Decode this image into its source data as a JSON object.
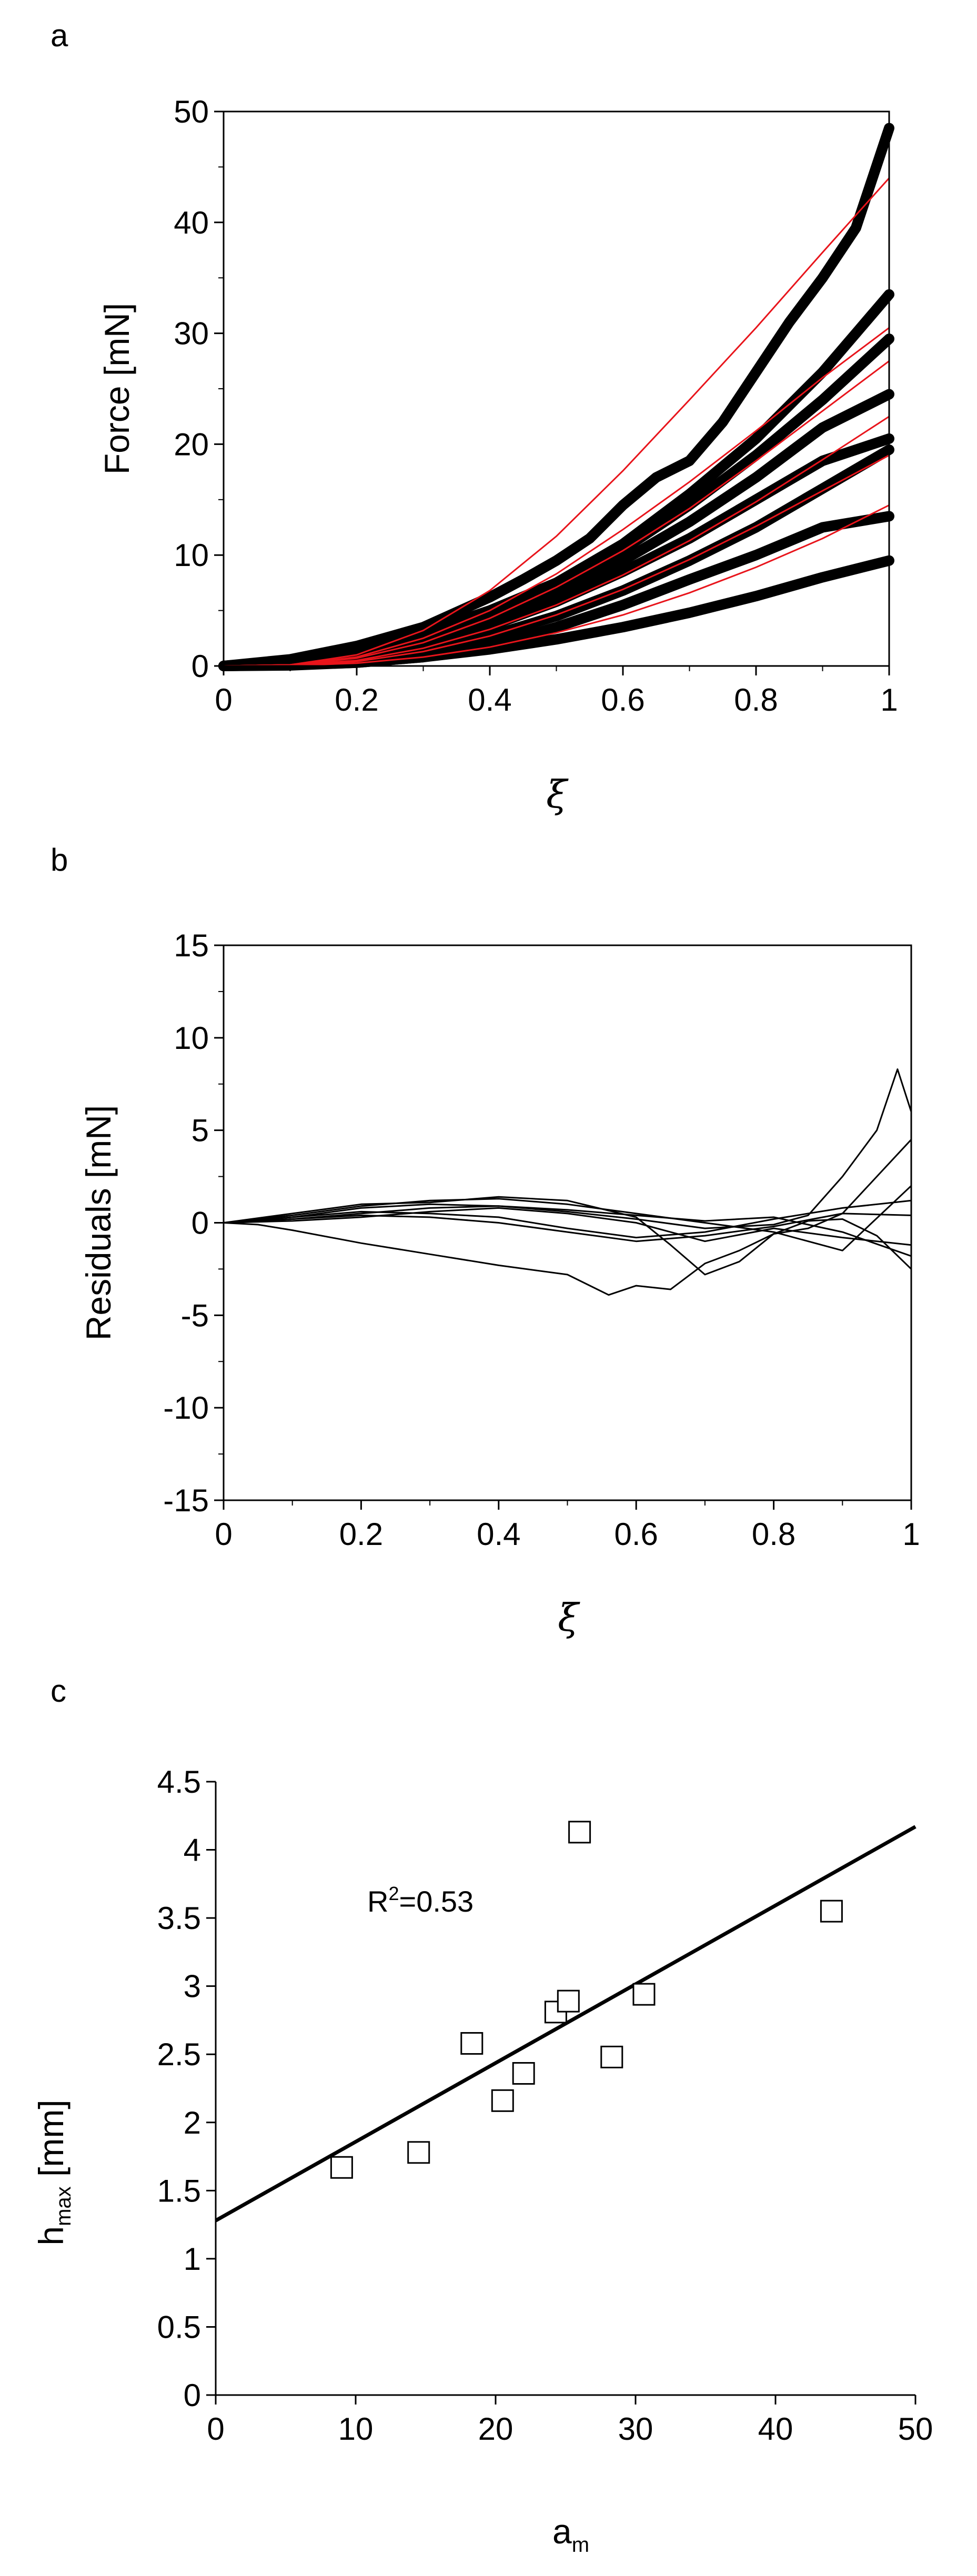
{
  "panels": {
    "a": {
      "letter": "a"
    },
    "b": {
      "letter": "b"
    },
    "c": {
      "letter": "c"
    }
  },
  "chart_data": [
    {
      "type": "line",
      "panel": "a",
      "xlabel": "ξ",
      "ylabel": "Force [mN]",
      "xlim": [
        0,
        1
      ],
      "ylim": [
        0,
        50
      ],
      "xticks": [
        "0",
        "0.2",
        "0.4",
        "0.6",
        "0.8",
        "1"
      ],
      "yticks": [
        "0",
        "10",
        "20",
        "30",
        "40",
        "50"
      ],
      "grid": false,
      "series_color": "#000000",
      "fit_color": "#e8141b",
      "series": [
        {
          "x": [
            0,
            0.1,
            0.2,
            0.3,
            0.4,
            0.45,
            0.5,
            0.55,
            0.6,
            0.65,
            0.7,
            0.75,
            0.8,
            0.85,
            0.9,
            0.95,
            1.0
          ],
          "values": [
            0,
            0.6,
            1.8,
            3.5,
            6.2,
            7.8,
            9.5,
            11.5,
            14.5,
            17.0,
            18.5,
            22.0,
            26.5,
            31.0,
            35.0,
            39.5,
            48.5
          ]
        },
        {
          "x": [
            0,
            0.1,
            0.2,
            0.3,
            0.4,
            0.5,
            0.6,
            0.7,
            0.8,
            0.9,
            0.95,
            1.0
          ],
          "values": [
            0,
            0.5,
            1.7,
            3.0,
            5.0,
            7.5,
            11.0,
            15.5,
            20.5,
            26.5,
            30.0,
            33.5
          ]
        },
        {
          "x": [
            0,
            0.1,
            0.2,
            0.3,
            0.4,
            0.5,
            0.6,
            0.7,
            0.8,
            0.9,
            1.0
          ],
          "values": [
            0,
            0.4,
            1.3,
            2.6,
            4.5,
            7.2,
            10.5,
            14.5,
            19.0,
            24.0,
            29.5
          ]
        },
        {
          "x": [
            0,
            0.1,
            0.2,
            0.3,
            0.4,
            0.5,
            0.6,
            0.7,
            0.8,
            0.9,
            1.0
          ],
          "values": [
            0,
            0.3,
            1.0,
            2.2,
            4.0,
            6.4,
            9.5,
            13.0,
            17.0,
            21.5,
            24.5
          ]
        },
        {
          "x": [
            0,
            0.1,
            0.2,
            0.3,
            0.4,
            0.5,
            0.6,
            0.7,
            0.8,
            0.9,
            1.0
          ],
          "values": [
            0,
            0.3,
            0.9,
            2.0,
            3.6,
            5.8,
            8.5,
            11.5,
            15.0,
            18.5,
            20.5
          ]
        },
        {
          "x": [
            0,
            0.1,
            0.2,
            0.3,
            0.4,
            0.5,
            0.6,
            0.7,
            0.8,
            0.9,
            1.0
          ],
          "values": [
            0,
            0.2,
            0.7,
            1.5,
            2.7,
            4.5,
            6.8,
            9.5,
            12.5,
            16.0,
            19.5
          ]
        },
        {
          "x": [
            0,
            0.1,
            0.2,
            0.3,
            0.4,
            0.5,
            0.6,
            0.7,
            0.8,
            0.9,
            1.0
          ],
          "values": [
            0,
            0.1,
            0.3,
            0.8,
            1.8,
            3.5,
            5.5,
            7.8,
            10.0,
            12.5,
            13.5
          ]
        },
        {
          "x": [
            0,
            0.1,
            0.2,
            0.3,
            0.4,
            0.5,
            0.6,
            0.7,
            0.8,
            0.9,
            1.0
          ],
          "values": [
            0,
            0.05,
            0.3,
            0.8,
            1.5,
            2.4,
            3.5,
            4.8,
            6.3,
            8.0,
            9.5
          ]
        }
      ],
      "fits": [
        {
          "x": [
            0,
            0.1,
            0.2,
            0.3,
            0.4,
            0.5,
            0.6,
            0.7,
            0.8,
            0.9,
            1.0
          ],
          "values": [
            0,
            0.1,
            1.0,
            3.2,
            6.8,
            11.7,
            17.6,
            24.0,
            30.5,
            37.3,
            44.0
          ]
        },
        {
          "x": [
            0,
            0.1,
            0.2,
            0.3,
            0.4,
            0.5,
            0.6,
            0.7,
            0.8,
            0.9,
            1.0
          ],
          "values": [
            0,
            0.1,
            0.8,
            2.5,
            5.0,
            8.3,
            12.3,
            16.6,
            21.2,
            26.0,
            30.5
          ]
        },
        {
          "x": [
            0,
            0.1,
            0.2,
            0.3,
            0.4,
            0.5,
            0.6,
            0.7,
            0.8,
            0.9,
            1.0
          ],
          "values": [
            0,
            0.1,
            0.7,
            2.1,
            4.3,
            7.1,
            10.4,
            14.2,
            18.5,
            23.0,
            27.5
          ]
        },
        {
          "x": [
            0,
            0.1,
            0.2,
            0.3,
            0.4,
            0.5,
            0.6,
            0.7,
            0.8,
            0.9,
            1.0
          ],
          "values": [
            0,
            0.1,
            0.5,
            1.6,
            3.3,
            5.5,
            8.2,
            11.3,
            14.8,
            18.6,
            22.5
          ]
        },
        {
          "x": [
            0,
            0.1,
            0.2,
            0.3,
            0.4,
            0.5,
            0.6,
            0.7,
            0.8,
            0.9,
            1.0
          ],
          "values": [
            0,
            0.05,
            0.4,
            1.3,
            2.7,
            4.6,
            6.9,
            9.6,
            12.6,
            15.8,
            19.0
          ]
        },
        {
          "x": [
            0,
            0.1,
            0.2,
            0.3,
            0.4,
            0.5,
            0.6,
            0.7,
            0.8,
            0.9,
            1.0
          ],
          "values": [
            0,
            0.03,
            0.25,
            0.8,
            1.7,
            3.0,
            4.6,
            6.6,
            8.9,
            11.5,
            14.5
          ]
        }
      ]
    },
    {
      "type": "line",
      "panel": "b",
      "xlabel": "ξ",
      "ylabel": "Residuals [mN]",
      "xlim": [
        0,
        1
      ],
      "ylim": [
        -15,
        15
      ],
      "xticks": [
        "0",
        "0.2",
        "0.4",
        "0.6",
        "0.8",
        "1"
      ],
      "yticks": [
        "-15",
        "-10",
        "-5",
        "0",
        "5",
        "10",
        "15"
      ],
      "grid": false,
      "series_color": "#000000",
      "series": [
        {
          "x": [
            0,
            0.05,
            0.1,
            0.2,
            0.3,
            0.4,
            0.5,
            0.56,
            0.6,
            0.65,
            0.7,
            0.75,
            0.8,
            0.85,
            0.9,
            0.95,
            1.0
          ],
          "values": [
            0,
            -0.1,
            -0.4,
            -1.1,
            -1.7,
            -2.3,
            -2.8,
            -3.9,
            -3.4,
            -3.6,
            -2.2,
            -1.5,
            -0.6,
            0.1,
            0.2,
            -0.7,
            -2.5
          ]
        },
        {
          "x": [
            0,
            0.1,
            0.2,
            0.3,
            0.4,
            0.5,
            0.6,
            0.7,
            0.8,
            0.85,
            0.9,
            0.95,
            0.98,
            1.0
          ],
          "values": [
            0,
            0.3,
            0.8,
            1.0,
            0.9,
            0.6,
            0.2,
            -0.3,
            -0.1,
            0.4,
            2.5,
            5.0,
            8.3,
            6.0
          ]
        },
        {
          "x": [
            0,
            0.1,
            0.2,
            0.3,
            0.4,
            0.5,
            0.6,
            0.65,
            0.7,
            0.75,
            0.8,
            0.85,
            0.9,
            0.95,
            1.0
          ],
          "values": [
            0,
            0.5,
            1.0,
            1.1,
            1.4,
            1.2,
            0.3,
            -1.2,
            -2.8,
            -2.1,
            -0.6,
            -0.3,
            0.5,
            2.5,
            4.5
          ]
        },
        {
          "x": [
            0,
            0.1,
            0.2,
            0.3,
            0.4,
            0.5,
            0.6,
            0.7,
            0.8,
            0.9,
            1.0
          ],
          "values": [
            0,
            0.4,
            0.9,
            1.2,
            1.3,
            1.0,
            0.5,
            0.0,
            -0.5,
            -1.5,
            2.0
          ]
        },
        {
          "x": [
            0,
            0.1,
            0.2,
            0.3,
            0.4,
            0.5,
            0.6,
            0.7,
            0.8,
            0.9,
            1.0
          ],
          "values": [
            0,
            0.3,
            0.6,
            0.5,
            0.3,
            -0.3,
            -0.8,
            -0.5,
            0.2,
            0.8,
            1.2
          ]
        },
        {
          "x": [
            0,
            0.1,
            0.2,
            0.3,
            0.4,
            0.5,
            0.6,
            0.7,
            0.8,
            0.9,
            1.0
          ],
          "values": [
            0,
            0.2,
            0.4,
            0.3,
            0.0,
            -0.5,
            -1.0,
            -0.7,
            -0.2,
            0.5,
            0.4
          ]
        },
        {
          "x": [
            0,
            0.1,
            0.2,
            0.3,
            0.4,
            0.5,
            0.6,
            0.7,
            0.8,
            0.9,
            1.0
          ],
          "values": [
            0,
            0.1,
            0.3,
            0.6,
            0.8,
            0.5,
            0.0,
            -1.0,
            -0.3,
            -0.8,
            -1.2
          ]
        },
        {
          "x": [
            0,
            0.1,
            0.2,
            0.3,
            0.4,
            0.5,
            0.6,
            0.7,
            0.8,
            0.9,
            1.0
          ],
          "values": [
            0,
            0.2,
            0.5,
            0.8,
            0.9,
            0.7,
            0.4,
            0.1,
            0.3,
            -0.5,
            -1.8
          ]
        }
      ]
    },
    {
      "type": "scatter",
      "panel": "c",
      "xlabel": "a_m",
      "ylabel": "h_max [mm]",
      "xlabel_main": "a",
      "xlabel_sub": "m",
      "ylabel_main": "h",
      "ylabel_sub": "max",
      "ylabel_unit": "[mm]",
      "xlim": [
        0,
        50
      ],
      "ylim": [
        0,
        4.5
      ],
      "xticks": [
        "0",
        "10",
        "20",
        "30",
        "40",
        "50"
      ],
      "yticks": [
        "0",
        "0.5",
        "1",
        "1.5",
        "2",
        "2.5",
        "3",
        "3.5",
        "4",
        "4.5"
      ],
      "grid": false,
      "annotation": "R²=0.53",
      "annotation_main": "R",
      "annotation_sup": "2",
      "annotation_rest": "=0.53",
      "points": [
        {
          "x": 9.0,
          "y": 1.67
        },
        {
          "x": 14.5,
          "y": 1.78
        },
        {
          "x": 18.3,
          "y": 2.58
        },
        {
          "x": 20.5,
          "y": 2.16
        },
        {
          "x": 22.0,
          "y": 2.36
        },
        {
          "x": 24.3,
          "y": 2.81
        },
        {
          "x": 25.2,
          "y": 2.89
        },
        {
          "x": 26.0,
          "y": 4.13
        },
        {
          "x": 28.3,
          "y": 2.48
        },
        {
          "x": 30.6,
          "y": 2.94
        },
        {
          "x": 44.0,
          "y": 3.55
        }
      ],
      "fit_line": {
        "x": [
          0,
          50
        ],
        "values": [
          1.28,
          4.17
        ]
      }
    }
  ]
}
